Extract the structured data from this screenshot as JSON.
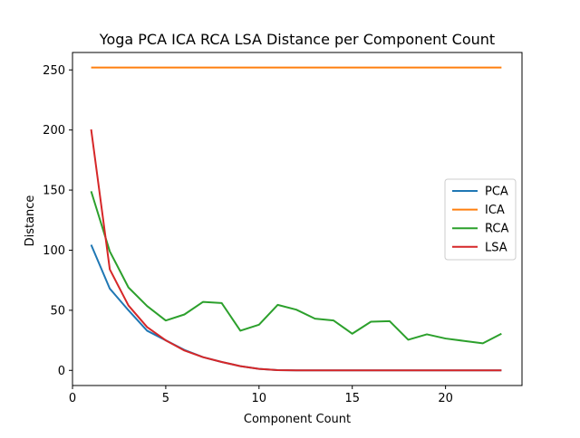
{
  "chart_data": {
    "type": "line",
    "title": "Yoga PCA ICA RCA LSA Distance per Component Count",
    "xlabel": "Component Count",
    "ylabel": "Distance",
    "xlim": [
      0,
      24.1
    ],
    "ylim": [
      -12.6,
      264.5
    ],
    "xticks": [
      0,
      5,
      10,
      15,
      20
    ],
    "yticks": [
      0,
      50,
      100,
      150,
      200,
      250
    ],
    "legend_position": "center-right",
    "x": [
      1,
      2,
      3,
      4,
      5,
      6,
      7,
      8,
      9,
      10,
      11,
      12,
      13,
      14,
      15,
      16,
      17,
      18,
      19,
      20,
      21,
      22,
      23
    ],
    "series": [
      {
        "name": "PCA",
        "color": "#1f77b4",
        "values": [
          104.5,
          68,
          50,
          33,
          25,
          17,
          11,
          7,
          3.5,
          1.2,
          0.2,
          0,
          0,
          0,
          0,
          0,
          0,
          0,
          0,
          0,
          0,
          0,
          0
        ]
      },
      {
        "name": "ICA",
        "color": "#ff7f0e",
        "values": [
          252,
          252,
          252,
          252,
          252,
          252,
          252,
          252,
          252,
          252,
          252,
          252,
          252,
          252,
          252,
          252,
          252,
          252,
          252,
          252,
          252,
          252,
          252
        ]
      },
      {
        "name": "RCA",
        "color": "#2ca02c",
        "values": [
          149,
          99,
          69,
          53.5,
          41.5,
          46.5,
          57,
          56,
          33,
          38,
          54.5,
          50.5,
          43,
          41.5,
          30.5,
          40.5,
          41,
          25.5,
          30,
          26.5,
          24.5,
          22.5,
          30.5
        ]
      },
      {
        "name": "LSA",
        "color": "#d62728",
        "values": [
          200.5,
          84,
          54,
          36,
          25,
          16.5,
          11,
          7,
          3.5,
          1.2,
          0.2,
          0,
          0,
          0,
          0,
          0,
          0,
          0,
          0,
          0,
          0,
          0,
          0
        ]
      }
    ]
  }
}
